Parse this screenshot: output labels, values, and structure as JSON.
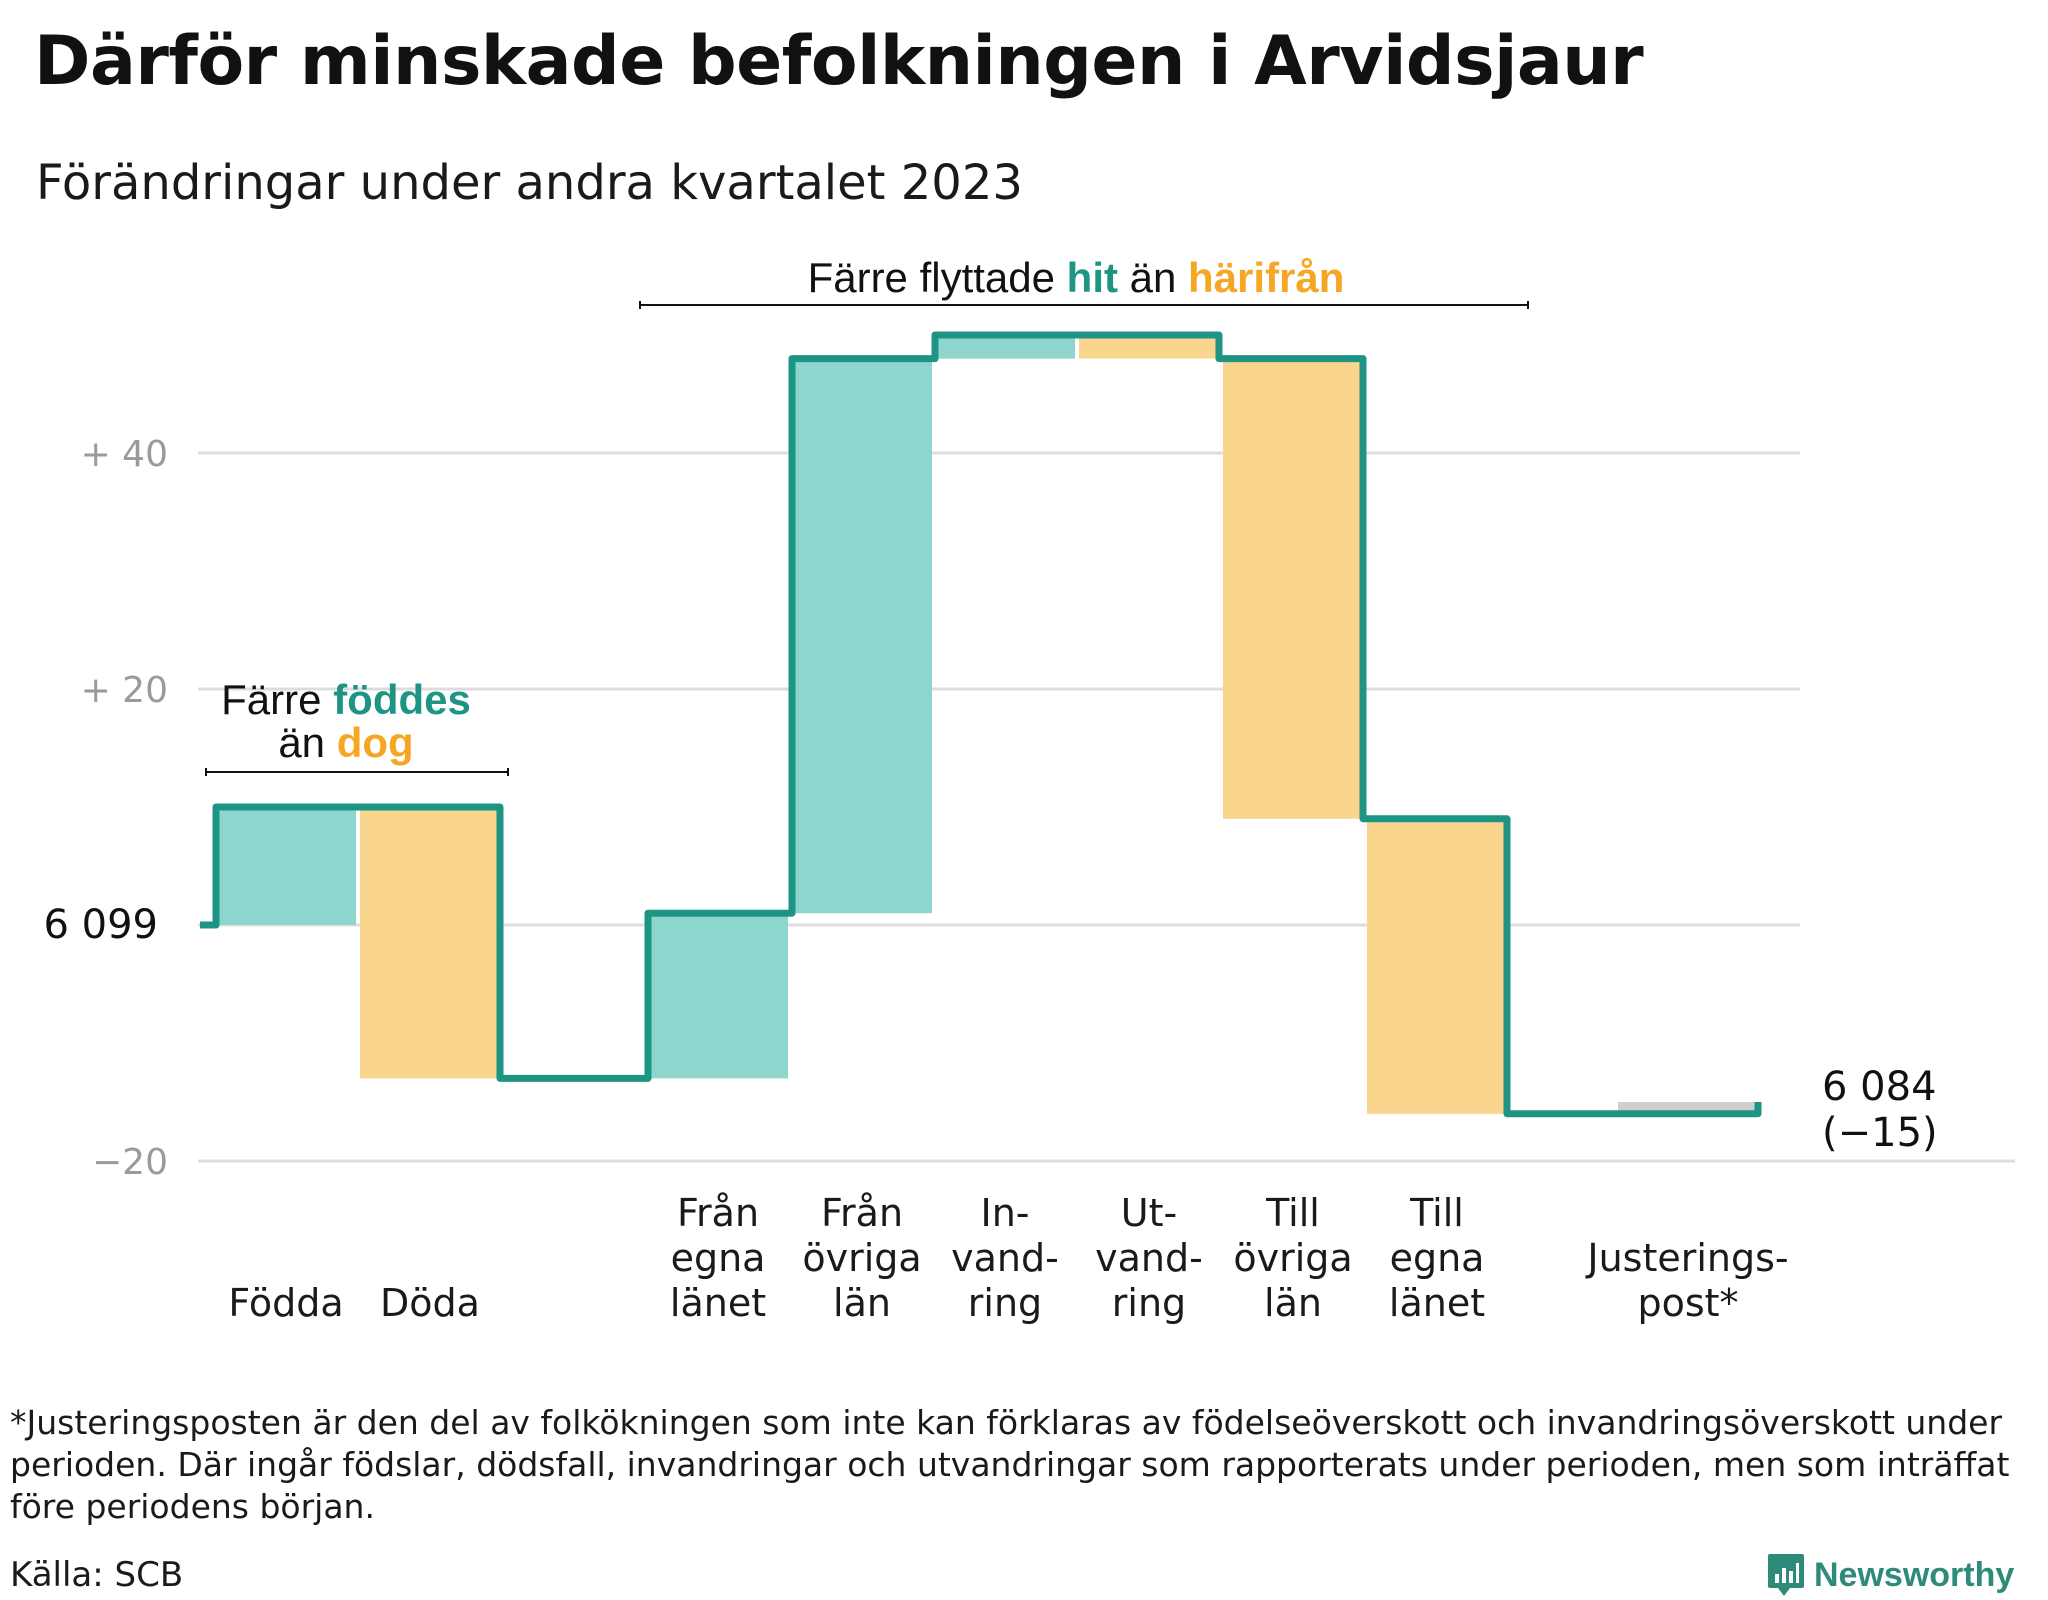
{
  "title": "Därför minskade befolkningen i Arvidsjaur",
  "subtitle": "Förändringar under andra kvartalet 2023",
  "chart_data": {
    "type": "waterfall",
    "start_label": "6 099",
    "start_value": 6099,
    "end_value_label": "6 084",
    "end_change_label": "(−15)",
    "y_ticks": [
      {
        "value": 40,
        "label": "+  40"
      },
      {
        "value": 20,
        "label": "+  20"
      },
      {
        "value": -20,
        "label": "−20"
      }
    ],
    "ylim": [
      -20,
      48
    ],
    "steps": [
      {
        "label": [
          "Födda"
        ],
        "value": 10,
        "kind": "in"
      },
      {
        "label": [
          "Döda"
        ],
        "value": -23,
        "kind": "out"
      },
      {
        "label": [
          "Från",
          "egna",
          "länet"
        ],
        "value": 14,
        "kind": "in"
      },
      {
        "label": [
          "Från",
          "övriga",
          "län"
        ],
        "value": 47,
        "kind": "in"
      },
      {
        "label": [
          "In-",
          "vand-",
          "ring"
        ],
        "value": 2,
        "kind": "in"
      },
      {
        "label": [
          "Ut-",
          "vand-",
          "ring"
        ],
        "value": -2,
        "kind": "out"
      },
      {
        "label": [
          "Till",
          "övriga",
          "län"
        ],
        "value": -39,
        "kind": "out"
      },
      {
        "label": [
          "Till",
          "egna",
          "länet"
        ],
        "value": -25,
        "kind": "out"
      },
      {
        "label": [
          "Justerings-",
          "post*"
        ],
        "value": 1,
        "kind": "adj"
      }
    ],
    "annotations": {
      "birth": {
        "line1_a": "Färre ",
        "line1_b": "föddes",
        "line2_a": "än ",
        "line2_b": "dog"
      },
      "migration": {
        "a": "Färre flyttade ",
        "b": "hit",
        "c": " än ",
        "d": "härifrån"
      }
    },
    "colors": {
      "line": "#1e9484",
      "in_fill": "#8dd5cd",
      "out_fill": "#fad58e",
      "adj_fill": "#cfcfcf",
      "accent_teal": "#1e9484",
      "accent_orange": "#f5a623",
      "grid": "#dddddd",
      "tick": "#9a9a9a"
    }
  },
  "footnote": "*Justeringsposten är den del av folkökningen som inte kan förklaras av födelseöverskott och invandringsöverskott under perioden. Där ingår födslar, dödsfall, invandringar och utvandringar som rapporterats under perioden, men som inträffat före periodens början.",
  "source": "Källa: SCB",
  "brand": "Newsworthy"
}
